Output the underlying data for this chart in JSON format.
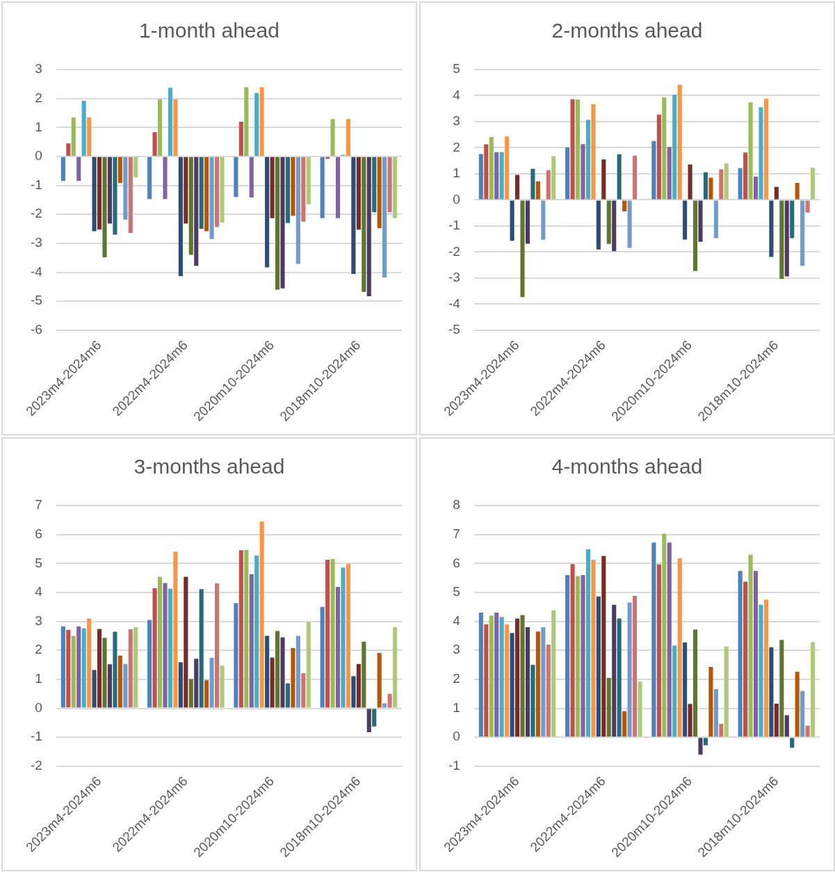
{
  "chart_data": [
    {
      "type": "bar",
      "title": "1-month ahead",
      "categories": [
        "2023m4-2024m6",
        "2022m4-2024m6",
        "2020m10-2024m6",
        "2018m10-2024m6"
      ],
      "ylim": [
        -6,
        3
      ],
      "yticks": [
        -6,
        -5,
        -4,
        -3,
        -2,
        -1,
        0,
        1,
        2,
        3
      ],
      "grid": "y",
      "legend": false,
      "series": [
        {
          "color": "#4f81bd",
          "values": [
            -0.85,
            -1.47,
            -1.4,
            -2.13
          ]
        },
        {
          "color": "#c0504d",
          "values": [
            0.45,
            0.84,
            1.2,
            -0.08
          ]
        },
        {
          "color": "#9bbb59",
          "values": [
            1.35,
            1.97,
            2.39,
            1.29
          ]
        },
        {
          "color": "#8064a2",
          "values": [
            -0.85,
            -1.47,
            -1.42,
            -2.13
          ]
        },
        {
          "color": "#4bacc6",
          "values": [
            1.92,
            2.37,
            2.19,
            0.05
          ]
        },
        {
          "color": "#f79646",
          "values": [
            1.35,
            1.97,
            2.39,
            1.29
          ]
        },
        {
          "color": "#2c4d75",
          "values": [
            -2.58,
            -4.13,
            -3.83,
            -4.06
          ]
        },
        {
          "color": "#772c2a",
          "values": [
            -2.52,
            -2.32,
            -2.13,
            -2.53
          ]
        },
        {
          "color": "#5f7530",
          "values": [
            -3.48,
            -3.4,
            -4.6,
            -4.68
          ]
        },
        {
          "color": "#4d3b62",
          "values": [
            -2.32,
            -3.78,
            -4.56,
            -4.83
          ]
        },
        {
          "color": "#276a7c",
          "values": [
            -2.7,
            -2.5,
            -2.3,
            -1.93
          ]
        },
        {
          "color": "#b65708",
          "values": [
            -0.92,
            -2.58,
            -2.05,
            -2.48
          ]
        },
        {
          "color": "#729aca",
          "values": [
            -2.18,
            -2.85,
            -3.71,
            -4.18
          ]
        },
        {
          "color": "#cd7371",
          "values": [
            -2.64,
            -2.44,
            -2.25,
            -1.93
          ]
        },
        {
          "color": "#afc97a",
          "values": [
            -0.73,
            -2.28,
            -1.65,
            -2.13
          ]
        }
      ]
    },
    {
      "type": "bar",
      "title": "2-months ahead",
      "categories": [
        "2023m4-2024m6",
        "2022m4-2024m6",
        "2020m10-2024m6",
        "2018m10-2024m6"
      ],
      "ylim": [
        -5,
        5
      ],
      "yticks": [
        -5,
        -4,
        -3,
        -2,
        -1,
        0,
        1,
        2,
        3,
        4,
        5
      ],
      "grid": "y",
      "legend": false,
      "series": [
        {
          "color": "#4f81bd",
          "values": [
            1.76,
            2.01,
            2.26,
            1.22
          ]
        },
        {
          "color": "#c0504d",
          "values": [
            2.13,
            3.86,
            3.27,
            1.82
          ]
        },
        {
          "color": "#9bbb59",
          "values": [
            2.41,
            3.85,
            3.93,
            3.74
          ]
        },
        {
          "color": "#8064a2",
          "values": [
            1.83,
            2.14,
            2.03,
            0.89
          ]
        },
        {
          "color": "#4bacc6",
          "values": [
            1.83,
            3.07,
            4.03,
            3.55
          ]
        },
        {
          "color": "#f79646",
          "values": [
            2.43,
            3.67,
            4.42,
            3.88
          ]
        },
        {
          "color": "#2c4d75",
          "values": [
            -1.57,
            -1.9,
            -1.52,
            -2.19
          ]
        },
        {
          "color": "#772c2a",
          "values": [
            0.96,
            1.55,
            1.36,
            0.5
          ]
        },
        {
          "color": "#5f7530",
          "values": [
            -3.73,
            -1.69,
            -2.73,
            -3.03
          ]
        },
        {
          "color": "#4d3b62",
          "values": [
            -1.68,
            -1.97,
            -1.61,
            -2.94
          ]
        },
        {
          "color": "#276a7c",
          "values": [
            1.19,
            1.75,
            1.06,
            -1.47
          ]
        },
        {
          "color": "#b65708",
          "values": [
            0.71,
            -0.44,
            0.85,
            0.65
          ]
        },
        {
          "color": "#729aca",
          "values": [
            -1.53,
            -1.84,
            -1.47,
            -2.53
          ]
        },
        {
          "color": "#cd7371",
          "values": [
            1.14,
            1.7,
            1.17,
            -0.49
          ]
        },
        {
          "color": "#afc97a",
          "values": [
            1.68,
            0,
            1.4,
            1.23
          ]
        }
      ]
    },
    {
      "type": "bar",
      "title": "3-months ahead",
      "categories": [
        "2023m4-2024m6",
        "2022m4-2024m6",
        "2020m10-2024m6",
        "2018m10-2024m6"
      ],
      "ylim": [
        -2,
        7
      ],
      "yticks": [
        -2,
        -1,
        0,
        1,
        2,
        3,
        4,
        5,
        6,
        7
      ],
      "grid": "y",
      "legend": false,
      "series": [
        {
          "color": "#4f81bd",
          "values": [
            2.83,
            3.05,
            3.63,
            3.5
          ]
        },
        {
          "color": "#c0504d",
          "values": [
            2.71,
            4.14,
            5.46,
            5.13
          ]
        },
        {
          "color": "#9bbb59",
          "values": [
            2.5,
            4.54,
            5.47,
            5.15
          ]
        },
        {
          "color": "#8064a2",
          "values": [
            2.83,
            4.32,
            4.63,
            4.19
          ]
        },
        {
          "color": "#4bacc6",
          "values": [
            2.76,
            4.13,
            5.28,
            4.86
          ]
        },
        {
          "color": "#f79646",
          "values": [
            3.1,
            5.41,
            6.45,
            4.99
          ]
        },
        {
          "color": "#2c4d75",
          "values": [
            1.32,
            1.59,
            2.5,
            1.11
          ]
        },
        {
          "color": "#772c2a",
          "values": [
            2.74,
            4.54,
            1.75,
            1.53
          ]
        },
        {
          "color": "#5f7530",
          "values": [
            2.43,
            1.01,
            2.67,
            2.3
          ]
        },
        {
          "color": "#4d3b62",
          "values": [
            1.52,
            1.71,
            2.45,
            -0.83
          ]
        },
        {
          "color": "#276a7c",
          "values": [
            2.64,
            4.11,
            0.86,
            -0.63
          ]
        },
        {
          "color": "#b65708",
          "values": [
            1.82,
            0.97,
            2.08,
            1.91
          ]
        },
        {
          "color": "#729aca",
          "values": [
            1.53,
            1.74,
            2.5,
            0.17
          ]
        },
        {
          "color": "#cd7371",
          "values": [
            2.73,
            4.31,
            1.21,
            0.5
          ]
        },
        {
          "color": "#afc97a",
          "values": [
            2.8,
            1.47,
            2.98,
            2.8
          ]
        }
      ]
    },
    {
      "type": "bar",
      "title": "4-months ahead",
      "categories": [
        "2023m4-2024m6",
        "2022m4-2024m6",
        "2020m10-2024m6",
        "2018m10-2024m6"
      ],
      "ylim": [
        -1,
        8
      ],
      "yticks": [
        -1,
        0,
        1,
        2,
        3,
        4,
        5,
        6,
        7,
        8
      ],
      "grid": "y",
      "legend": false,
      "series": [
        {
          "color": "#4f81bd",
          "values": [
            4.3,
            5.6,
            6.72,
            5.74
          ]
        },
        {
          "color": "#c0504d",
          "values": [
            3.9,
            5.98,
            5.97,
            5.37
          ]
        },
        {
          "color": "#9bbb59",
          "values": [
            4.2,
            5.56,
            7.03,
            6.3
          ]
        },
        {
          "color": "#8064a2",
          "values": [
            4.3,
            5.6,
            6.72,
            5.74
          ]
        },
        {
          "color": "#4bacc6",
          "values": [
            4.15,
            6.49,
            3.17,
            4.57
          ]
        },
        {
          "color": "#f79646",
          "values": [
            3.9,
            6.13,
            6.18,
            4.75
          ]
        },
        {
          "color": "#2c4d75",
          "values": [
            3.6,
            4.86,
            3.27,
            3.11
          ]
        },
        {
          "color": "#772c2a",
          "values": [
            4.1,
            6.26,
            1.15,
            1.16
          ]
        },
        {
          "color": "#5f7530",
          "values": [
            4.22,
            2.05,
            3.72,
            3.36
          ]
        },
        {
          "color": "#4d3b62",
          "values": [
            3.8,
            4.57,
            -0.6,
            0.76
          ]
        },
        {
          "color": "#276a7c",
          "values": [
            2.5,
            4.1,
            -0.28,
            -0.36
          ]
        },
        {
          "color": "#b65708",
          "values": [
            3.65,
            0.9,
            2.43,
            2.26
          ]
        },
        {
          "color": "#729aca",
          "values": [
            3.8,
            4.65,
            1.66,
            1.6
          ]
        },
        {
          "color": "#cd7371",
          "values": [
            3.2,
            4.88,
            0.46,
            0.4
          ]
        },
        {
          "color": "#afc97a",
          "values": [
            4.38,
            1.92,
            3.13,
            3.28
          ]
        }
      ]
    }
  ]
}
